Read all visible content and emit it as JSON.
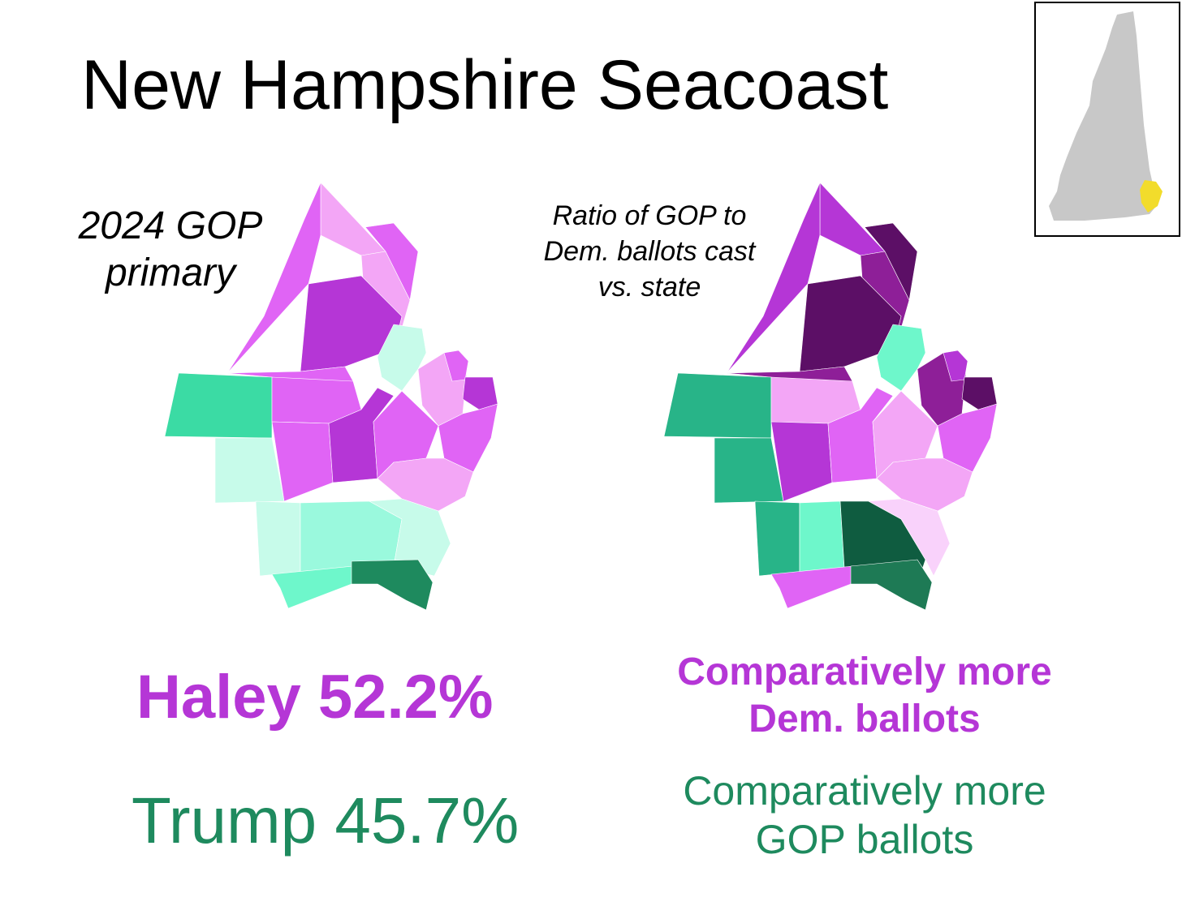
{
  "title": "New Hampshire Seacoast",
  "left_map": {
    "caption_line1": "2024 GOP",
    "caption_line2": "primary"
  },
  "right_map": {
    "caption_line1": "Ratio of GOP to",
    "caption_line2": "Dem. ballots cast",
    "caption_line3": "vs. state"
  },
  "results": {
    "haley": "Haley 52.2%",
    "trump": "Trump 45.7%"
  },
  "legend": {
    "dem_line1": "Comparatively more",
    "dem_line2": "Dem. ballots",
    "gop_line1": "Comparatively more",
    "gop_line2": "GOP ballots"
  },
  "colors": {
    "haley": "#b536d6",
    "trump": "#1e8a5e",
    "inset_state": "#c8c8c8",
    "inset_highlight": "#f2dc2b"
  }
}
